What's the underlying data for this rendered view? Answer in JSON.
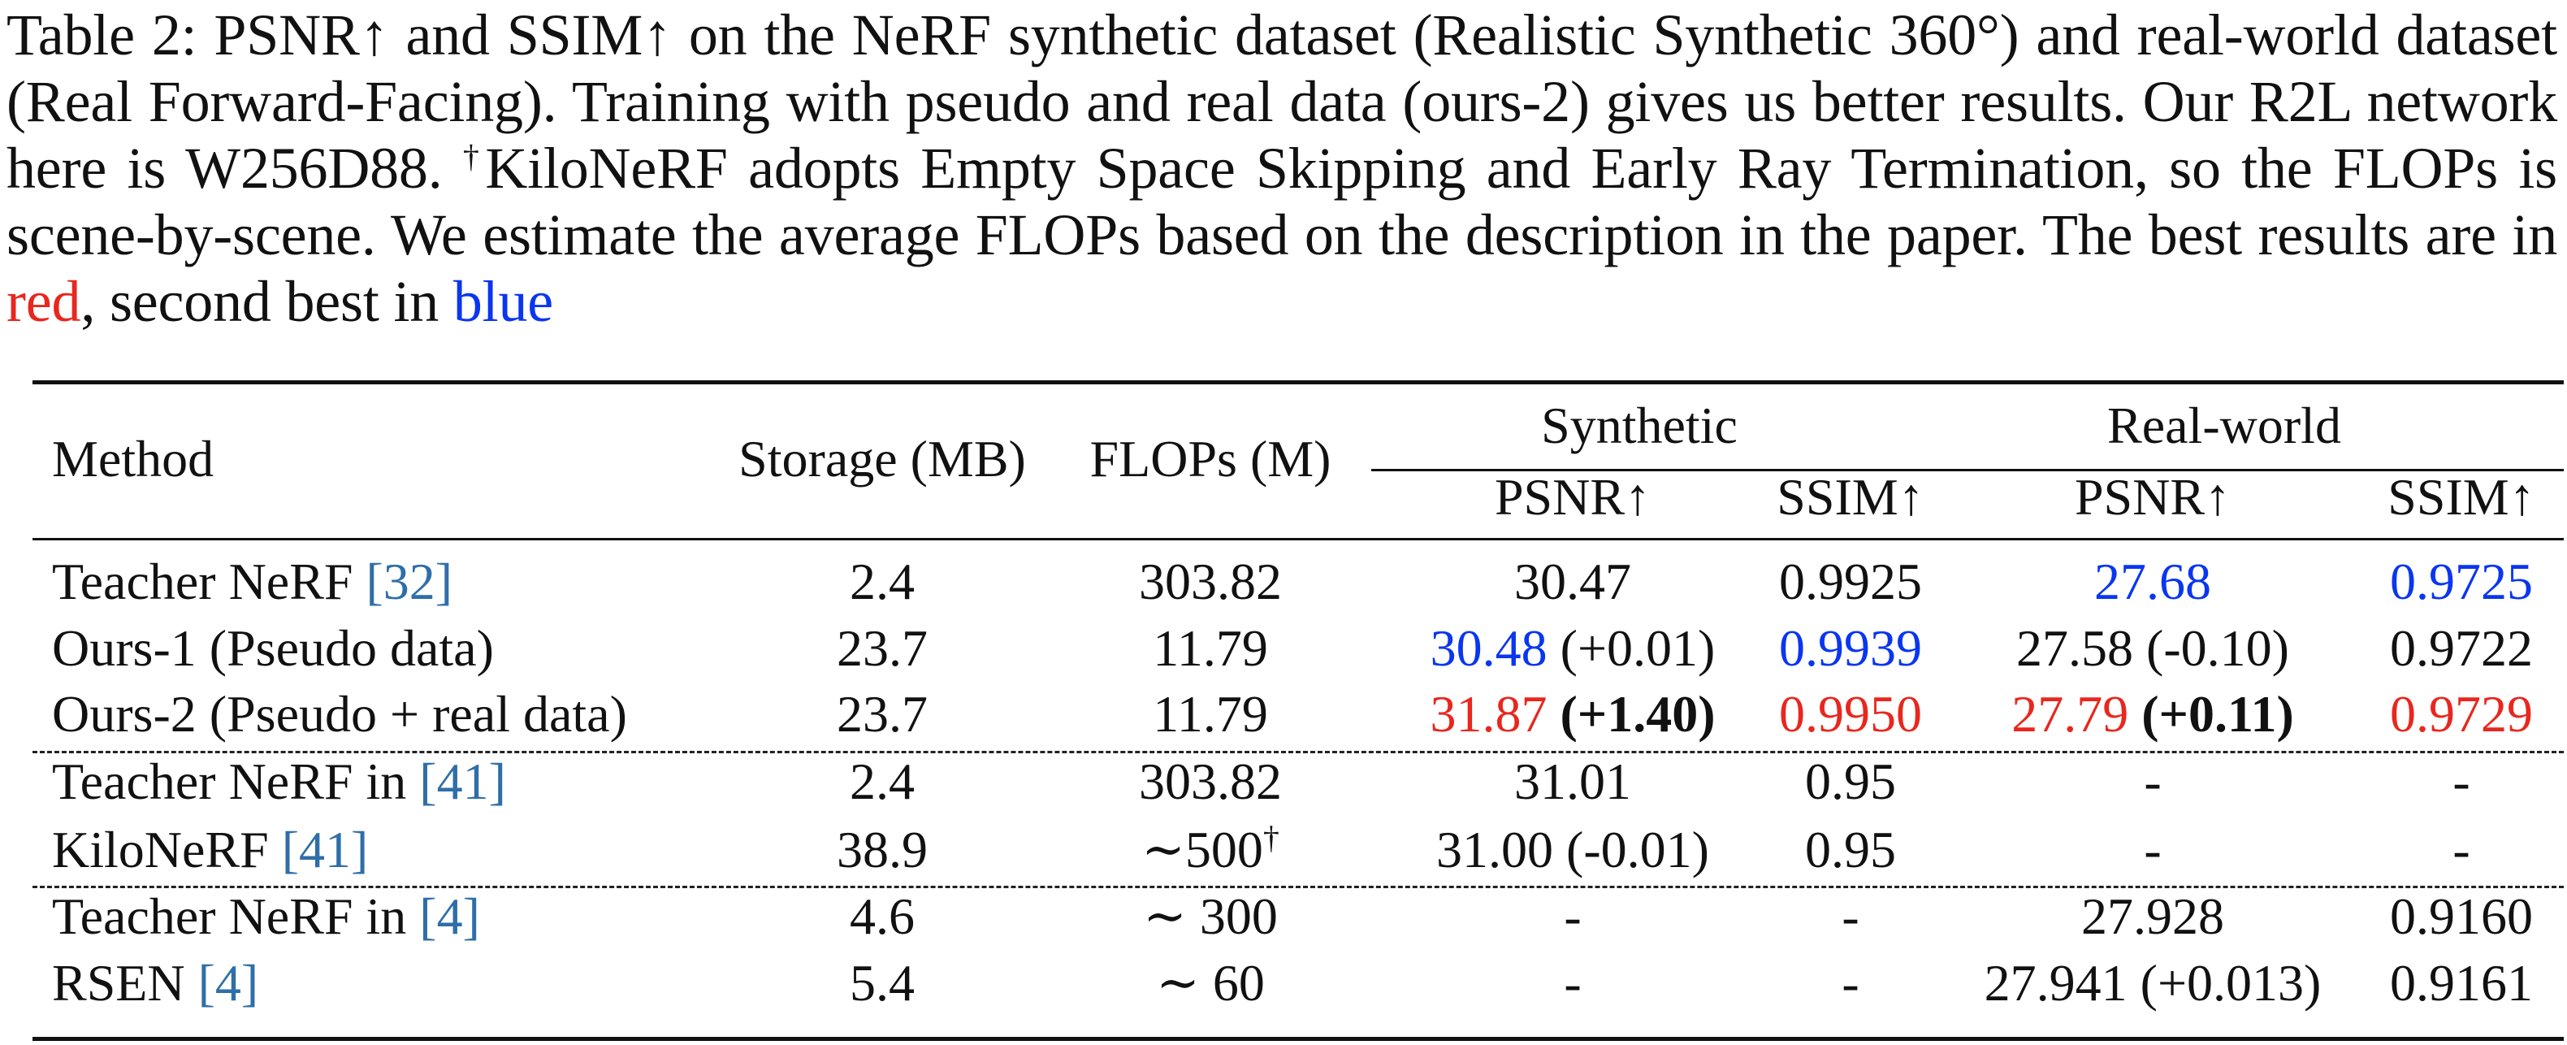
{
  "caption": {
    "part1": "Table 2: PSNR↑ and SSIM↑ on the NeRF synthetic dataset (Realistic Synthetic 360°) and real-world dataset (Real Forward-Facing). Training with pseudo and real data (ours-2) gives us better results. Our R2L network here is W256D88. ",
    "dagger": "†",
    "part2": "KiloNeRF adopts Empty Space Skipping and Early Ray Termination, so the FLOPs is scene-by-scene. We estimate the average FLOPs based on the description in the paper. The best results are in ",
    "red_word": "red",
    "part3": ", second best in ",
    "blue_word": "blue"
  },
  "header": {
    "method": "Method",
    "storage": "Storage (MB)",
    "flops": "FLOPs (M)",
    "synthetic": "Synthetic",
    "realworld": "Real-world",
    "psnr": "PSNR↑",
    "ssim": "SSIM↑"
  },
  "rows": [
    {
      "method": "Teacher NeRF ",
      "cite": "[32]",
      "storage": "2.4",
      "flops": "303.82",
      "syn_psnr": "30.47",
      "syn_ssim": "0.9925",
      "real_psnr": "27.68",
      "real_ssim": "0.9725"
    },
    {
      "method": "Ours-1 (Pseudo data)",
      "storage": "23.7",
      "flops": "11.79",
      "syn_psnr": "30.48",
      "syn_psnr_delta": " (+0.01)",
      "syn_ssim": "0.9939",
      "real_psnr": "27.58 (-0.10)",
      "real_ssim": "0.9722"
    },
    {
      "method": "Ours-2 (Pseudo + real data)",
      "storage": "23.7",
      "flops": "11.79",
      "syn_psnr": "31.87",
      "syn_psnr_delta": " (+1.40)",
      "syn_ssim": "0.9950",
      "real_psnr": "27.79",
      "real_psnr_delta": " (+0.11)",
      "real_ssim": "0.9729"
    },
    {
      "method": "Teacher NeRF in ",
      "cite": "[41]",
      "storage": "2.4",
      "flops": "303.82",
      "syn_psnr": "31.01",
      "syn_ssim": "0.95",
      "real_psnr": "-",
      "real_ssim": "-"
    },
    {
      "method": "KiloNeRF ",
      "cite": "[41]",
      "storage": "38.9",
      "flops": "∼500",
      "flops_sup": "†",
      "syn_psnr": "31.00 (-0.01)",
      "syn_ssim": "0.95",
      "real_psnr": "-",
      "real_ssim": "-"
    },
    {
      "method": "Teacher NeRF in ",
      "cite": "[4]",
      "storage": "4.6",
      "flops": "∼ 300",
      "syn_psnr": "-",
      "syn_ssim": "-",
      "real_psnr": "27.928",
      "real_ssim": "0.9160"
    },
    {
      "method": "RSEN ",
      "cite": "[4]",
      "storage": "5.4",
      "flops": "∼ 60",
      "syn_psnr": "-",
      "syn_ssim": "-",
      "real_psnr": "27.941 (+0.013)",
      "real_ssim": "0.9161"
    }
  ],
  "colors": {
    "best": "#e8271e",
    "second": "#0a36f0",
    "citation": "#2f6ea8"
  }
}
